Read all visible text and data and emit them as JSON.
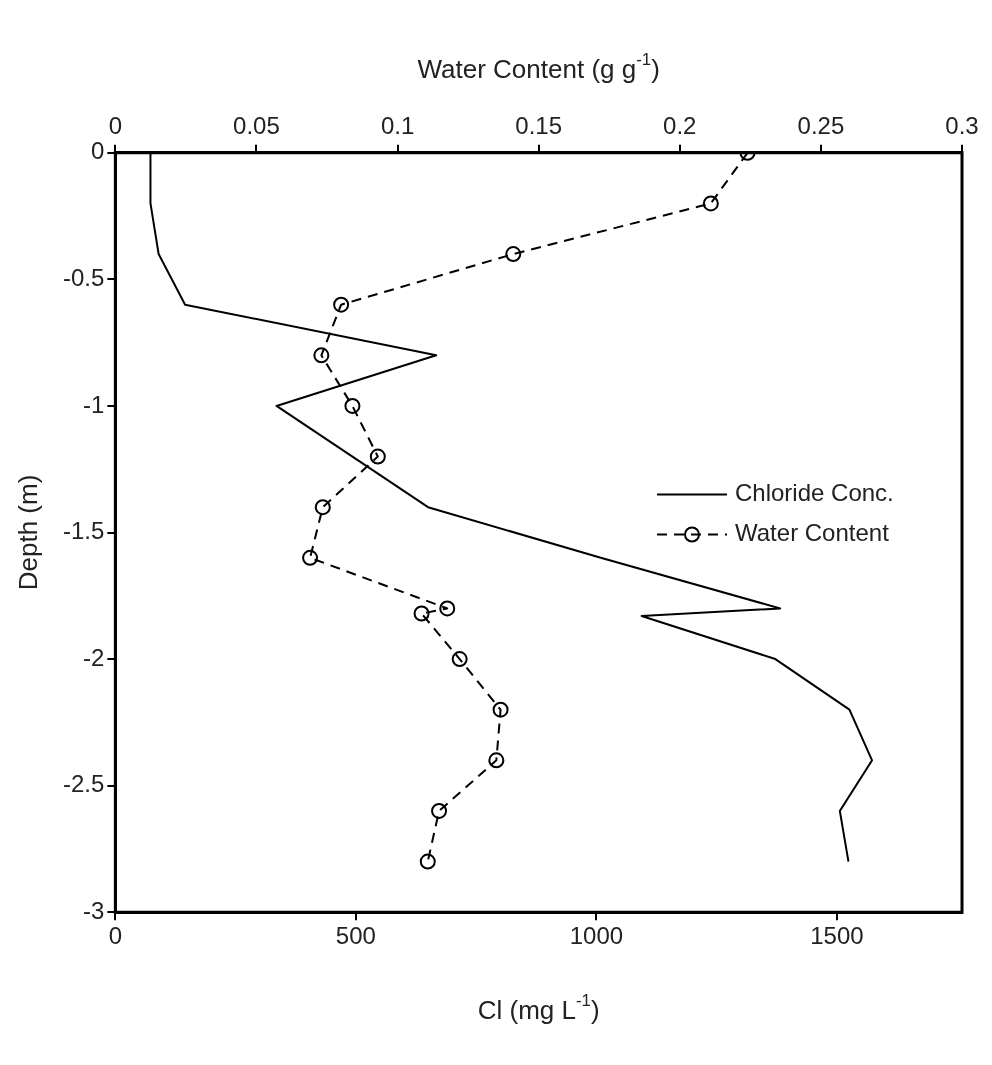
{
  "chart_data": {
    "type": "line",
    "xlabel": "Cl (mg L$^{-1}$)",
    "x2label": "Water Content (g g$^{-1}$)",
    "ylabel": "Depth (m)",
    "xlim": [
      0,
      1760
    ],
    "xticks": [
      0,
      500,
      1000,
      1500
    ],
    "x2lim": [
      0,
      0.3
    ],
    "x2ticks": [
      0,
      0.05,
      0.1,
      0.15,
      0.2,
      0.25,
      0.3
    ],
    "ylim": [
      -3,
      0
    ],
    "yticks": [
      0,
      -0.5,
      -1,
      -1.5,
      -2,
      -2.5,
      -3
    ],
    "grid": false,
    "legend": "right",
    "series": [
      {
        "name": "Chloride Conc.",
        "color": "#000000",
        "marker": "none",
        "line_style": "solid",
        "x": [
          73,
          73,
          90,
          145,
          667,
          335,
          650,
          1009,
          1382,
          1094,
          1372,
          1526,
          1573,
          1506,
          1524
        ],
        "values": [
          0,
          -0.2,
          -0.4,
          -0.6,
          -0.8,
          -1.0,
          -1.4,
          -1.6,
          -1.8,
          -1.83,
          -2.0,
          -2.2,
          -2.4,
          -2.6,
          -2.8
        ]
      },
      {
        "name": "Water Content",
        "color": "#000000",
        "marker": "circle",
        "line_style": "dashed",
        "axis": "x2",
        "x": [
          0.224,
          0.211,
          0.141,
          0.08,
          0.073,
          0.084,
          0.093,
          0.0735,
          0.069,
          0.1176,
          0.1085,
          0.122,
          0.1365,
          0.135,
          0.1147,
          0.1107
        ],
        "values": [
          0,
          -0.2,
          -0.4,
          -0.6,
          -0.8,
          -1.0,
          -1.2,
          -1.4,
          -1.6,
          -1.8,
          -1.82,
          -2.0,
          -2.2,
          -2.4,
          -2.6,
          -2.8
        ]
      }
    ]
  }
}
